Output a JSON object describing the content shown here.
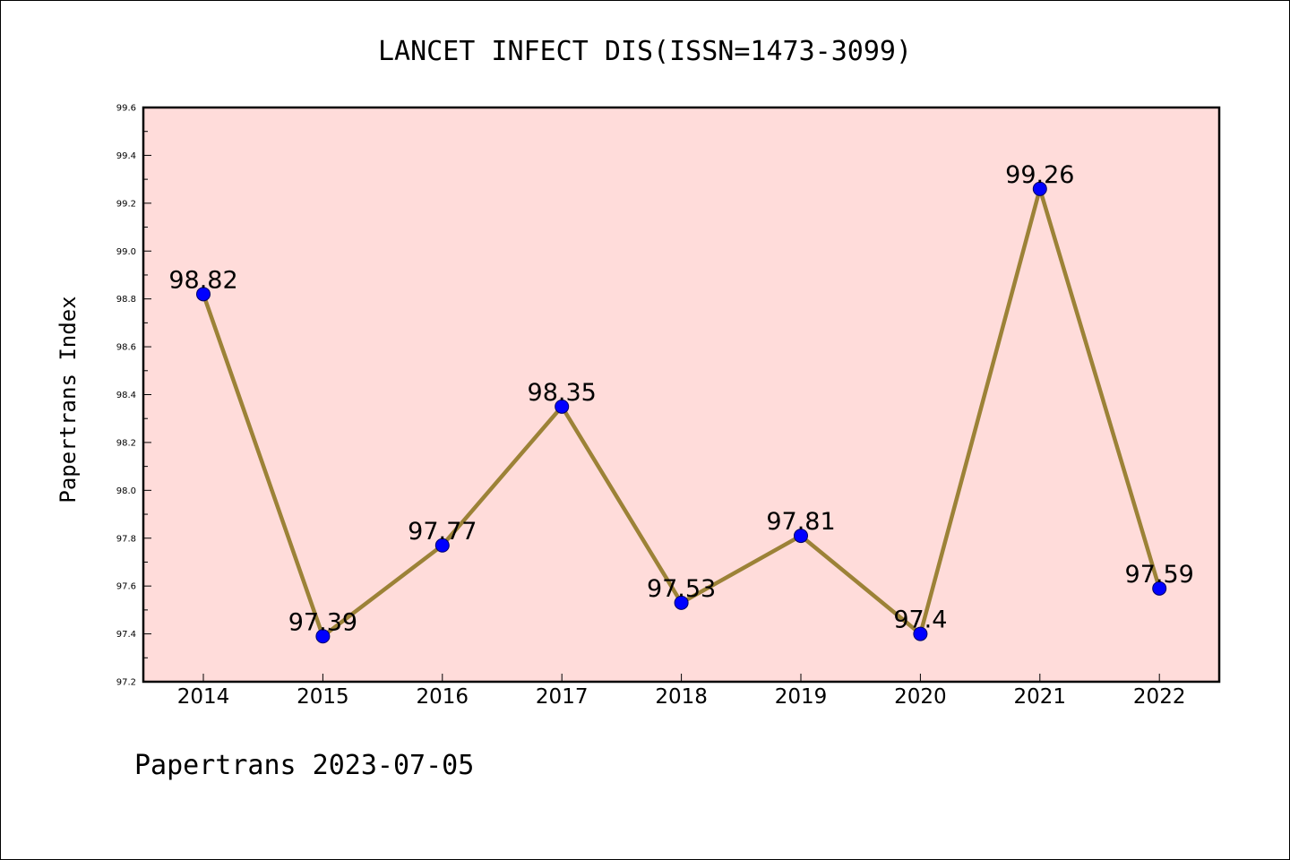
{
  "chart_data": {
    "type": "line",
    "title": "LANCET INFECT DIS(ISSN=1473-3099)",
    "ylabel": "Papertrans Index",
    "xlabel": "",
    "footer": "Papertrans 2023-07-05",
    "x": [
      "2014",
      "2015",
      "2016",
      "2017",
      "2018",
      "2019",
      "2020",
      "2021",
      "2022"
    ],
    "values": [
      98.82,
      97.39,
      97.77,
      98.35,
      97.53,
      97.81,
      97.4,
      99.26,
      97.59
    ],
    "data_labels": [
      "98.82",
      "97.39",
      "97.77",
      "98.35",
      "97.53",
      "97.81",
      "97.4",
      "99.26",
      "97.59"
    ],
    "ylim": [
      97.2,
      99.6
    ],
    "yticks": [
      "97.2",
      "97.4",
      "97.6",
      "97.8",
      "98.0",
      "98.2",
      "98.4",
      "98.6",
      "98.8",
      "99.0",
      "99.2",
      "99.4",
      "99.6"
    ],
    "grid": false,
    "legend": "none",
    "colors": {
      "plot_background": "#ffdcda",
      "line": "#9c8237",
      "marker": "#0000ff",
      "marker_edge": "#000066"
    }
  }
}
